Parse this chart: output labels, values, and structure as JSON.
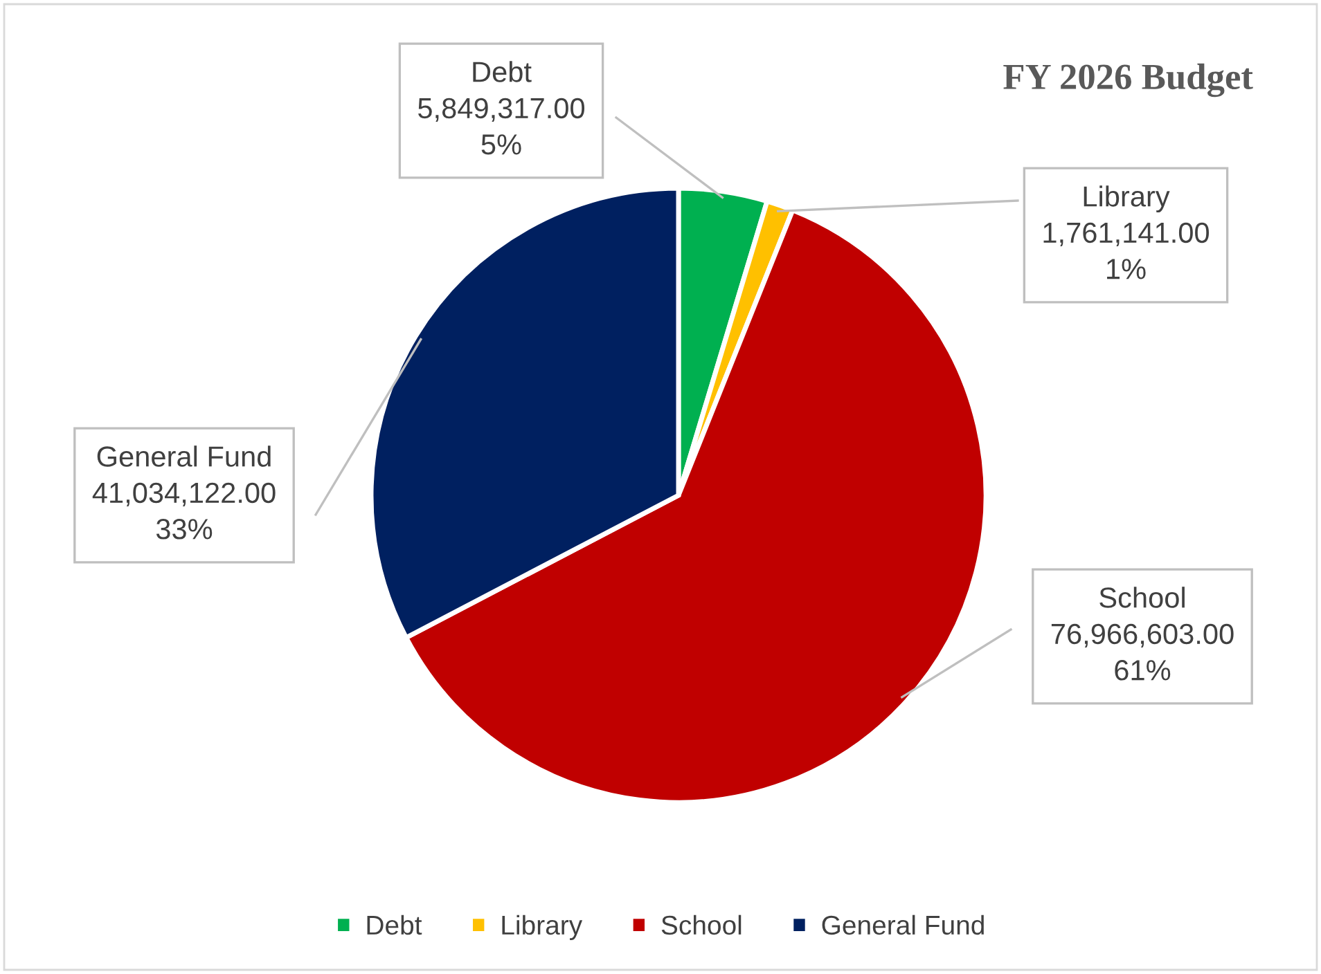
{
  "chart_data": {
    "type": "pie",
    "title": "FY 2026 Budget",
    "categories": [
      "Debt",
      "Library",
      "School",
      "General Fund"
    ],
    "values": [
      5849317.0,
      1761141.0,
      76966603.0,
      41034122.0
    ],
    "colors": [
      "#00b050",
      "#ffc000",
      "#c00000",
      "#002060"
    ],
    "value_labels": [
      "5,849,317.00\n5%",
      "1,761,141.00\n1%",
      "76,966,603.00\n61%",
      "41,034,122.00\n33%"
    ],
    "legend": "bottom"
  }
}
